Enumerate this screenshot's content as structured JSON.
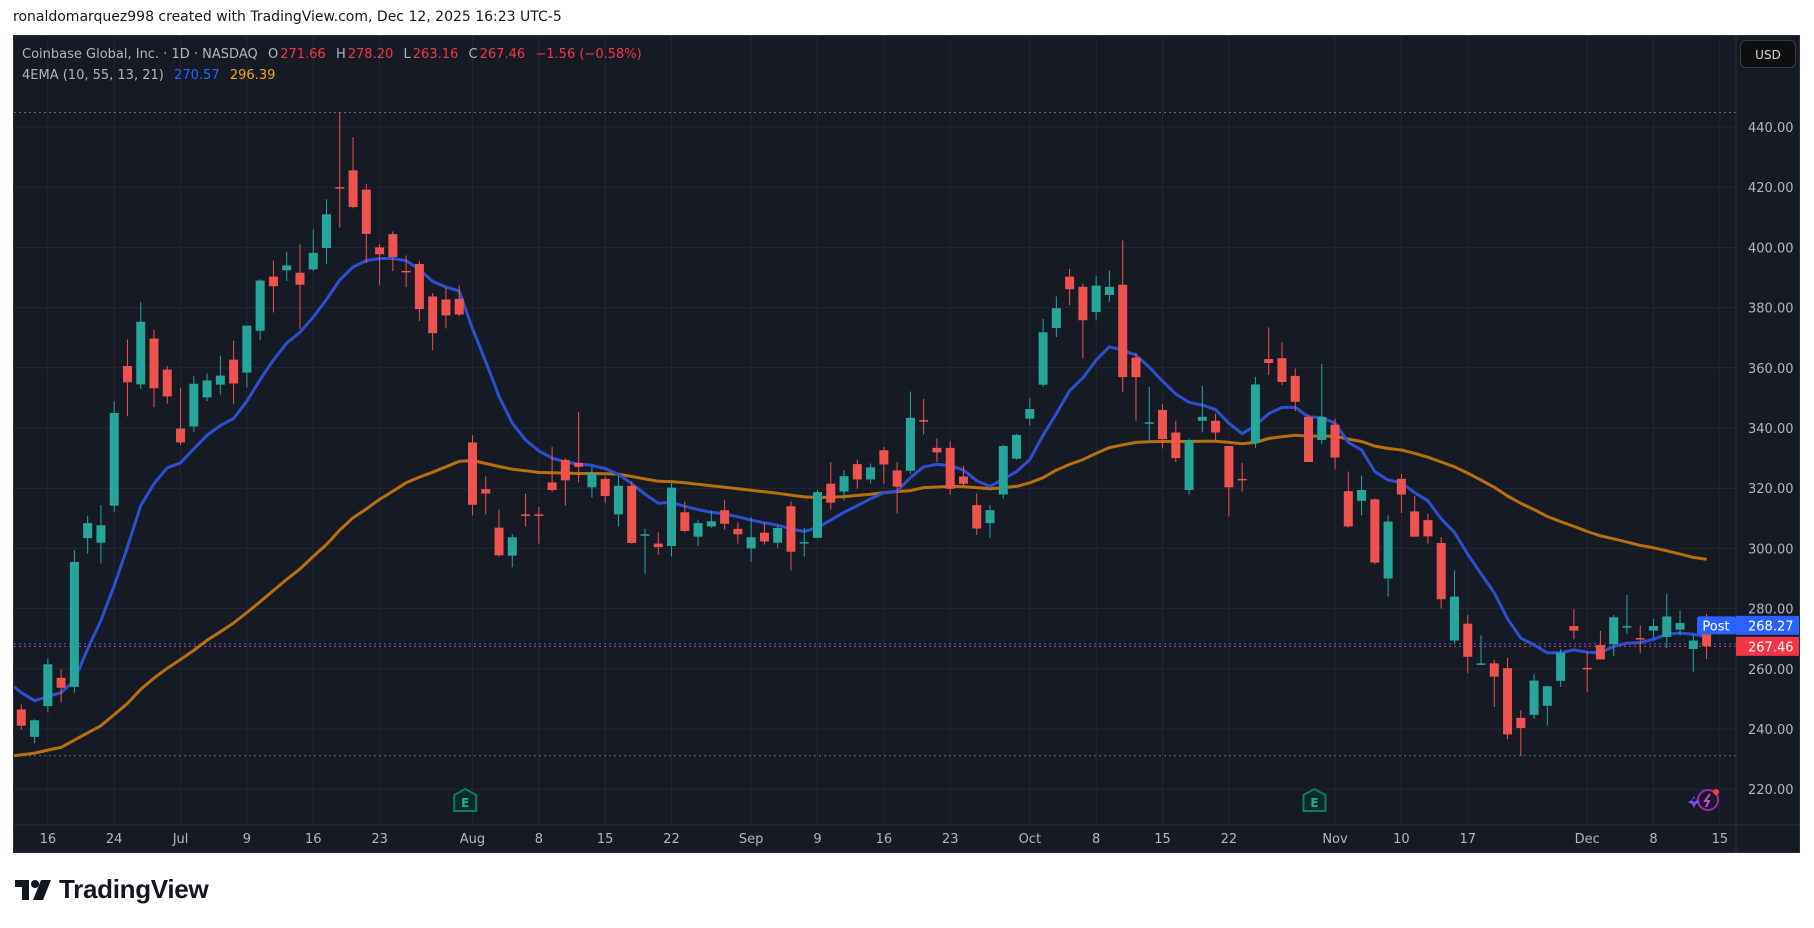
{
  "attribution": "ronaldomarquez998 created with TradingView.com, Dec 12, 2025 16:23 UTC-5",
  "legend": {
    "symbol": "Coinbase Global, Inc. · 1D · NASDAQ",
    "o_label": "O",
    "o": "271.66",
    "h_label": "H",
    "h": "278.20",
    "l_label": "L",
    "l": "263.16",
    "c_label": "C",
    "c": "267.46",
    "change": "−1.56 (−0.58%)",
    "indicator": "4EMA (10, 55, 13, 21)",
    "ema_fast": "270.57",
    "ema_slow": "296.39"
  },
  "currency_button": "USD",
  "price_labels": {
    "post_tag": "Post",
    "post_price": "268.27",
    "last_price": "267.46"
  },
  "brand": "TradingView",
  "colors": {
    "background": "#161a25",
    "grid": "#232733",
    "up": "#26a69a",
    "down": "#ef5350",
    "ema_fast": "#2c4fd0",
    "ema_slow": "#b8700f",
    "post": "#2962ff",
    "last": "#f23645",
    "axis_text": "#b2b5be"
  },
  "chart_data": {
    "type": "candlestick",
    "title": "Coinbase Global, Inc. · 1D · NASDAQ",
    "ylim": [
      210,
      450
    ],
    "y_ticks": [
      "220.00",
      "240.00",
      "260.00",
      "280.00",
      "300.00",
      "320.00",
      "340.00",
      "360.00",
      "380.00",
      "400.00",
      "420.00",
      "440.00"
    ],
    "x_ticks": [
      {
        "label": "16",
        "date": "2025-06-16"
      },
      {
        "label": "24",
        "date": "2025-06-24"
      },
      {
        "label": "Jul",
        "date": "2025-07-01"
      },
      {
        "label": "9",
        "date": "2025-07-09"
      },
      {
        "label": "16",
        "date": "2025-07-16"
      },
      {
        "label": "23",
        "date": "2025-07-23"
      },
      {
        "label": "Aug",
        "date": "2025-08-01"
      },
      {
        "label": "8",
        "date": "2025-08-08"
      },
      {
        "label": "15",
        "date": "2025-08-15"
      },
      {
        "label": "22",
        "date": "2025-08-22"
      },
      {
        "label": "Sep",
        "date": "2025-09-02"
      },
      {
        "label": "9",
        "date": "2025-09-09"
      },
      {
        "label": "16",
        "date": "2025-09-16"
      },
      {
        "label": "23",
        "date": "2025-09-23"
      },
      {
        "label": "Oct",
        "date": "2025-10-01"
      },
      {
        "label": "8",
        "date": "2025-10-08"
      },
      {
        "label": "15",
        "date": "2025-10-15"
      },
      {
        "label": "22",
        "date": "2025-10-22"
      },
      {
        "label": "Nov",
        "date": "2025-11-03"
      },
      {
        "label": "10",
        "date": "2025-11-10"
      },
      {
        "label": "17",
        "date": "2025-11-17"
      },
      {
        "label": "Dec",
        "date": "2025-12-01"
      },
      {
        "label": "8",
        "date": "2025-12-08"
      },
      {
        "label": "15",
        "date": "2025-12-15"
      }
    ],
    "grid": true,
    "earnings_markers": [
      "2025-07-31",
      "2025-10-30"
    ],
    "candles_format": [
      "date",
      "open",
      "high",
      "low",
      "close"
    ],
    "candles": [
      [
        "2025-06-12",
        246.5,
        248.1,
        239.8,
        241.1
      ],
      [
        "2025-06-13",
        237.4,
        243.2,
        235.2,
        242.9
      ],
      [
        "2025-06-16",
        247.6,
        263.4,
        245.6,
        261.5
      ],
      [
        "2025-06-17",
        257,
        259.8,
        248.9,
        253.7
      ],
      [
        "2025-06-18",
        254,
        299.4,
        252.1,
        295.5
      ],
      [
        "2025-06-20",
        303.4,
        310.8,
        298.2,
        308.4
      ],
      [
        "2025-06-23",
        301.9,
        314.4,
        295,
        307.7
      ],
      [
        "2025-06-24",
        314.2,
        348.9,
        312.1,
        345
      ],
      [
        "2025-06-25",
        360.6,
        369.4,
        343.9,
        355.2
      ],
      [
        "2025-06-26",
        354.5,
        381.9,
        353,
        375.3
      ],
      [
        "2025-06-27",
        369.7,
        372.7,
        346.9,
        353.2
      ],
      [
        "2025-06-30",
        359.4,
        360.6,
        348.1,
        350.5
      ],
      [
        "2025-07-01",
        339.8,
        353.4,
        334.4,
        335.2
      ],
      [
        "2025-07-02",
        340.5,
        357.3,
        338.7,
        354.7
      ],
      [
        "2025-07-03",
        350.2,
        358.1,
        348.9,
        355.8
      ],
      [
        "2025-07-07",
        354.4,
        364,
        351.1,
        357.4
      ],
      [
        "2025-07-08",
        362.7,
        369,
        348.1,
        354.8
      ],
      [
        "2025-07-09",
        358.4,
        374,
        353.5,
        374
      ],
      [
        "2025-07-10",
        372.3,
        389.4,
        369.2,
        389
      ],
      [
        "2025-07-11",
        390.3,
        395.6,
        378.4,
        387.1
      ],
      [
        "2025-07-14",
        392.4,
        398.5,
        388.9,
        394
      ],
      [
        "2025-07-15",
        391.6,
        401,
        373,
        387.6
      ],
      [
        "2025-07-16",
        392.7,
        406,
        392.1,
        398.2
      ],
      [
        "2025-07-17",
        399.8,
        416,
        394.5,
        411
      ],
      [
        "2025-07-18",
        420,
        444.8,
        406.6,
        419.7
      ],
      [
        "2025-07-21",
        425.6,
        436.6,
        413,
        413.4
      ],
      [
        "2025-07-22",
        419.2,
        421,
        394.8,
        404.5
      ],
      [
        "2025-07-23",
        400,
        401.1,
        387.4,
        397.7
      ],
      [
        "2025-07-24",
        404.4,
        405.3,
        392.1,
        396.8
      ],
      [
        "2025-07-25",
        392.2,
        397.3,
        386.8,
        391.8
      ],
      [
        "2025-07-28",
        394.5,
        395.5,
        375.5,
        379.5
      ],
      [
        "2025-07-29",
        383.7,
        384.8,
        365.8,
        371.5
      ],
      [
        "2025-07-30",
        382.7,
        386.6,
        373.1,
        377.4
      ],
      [
        "2025-07-31",
        382.9,
        387.3,
        377.1,
        377.7
      ],
      [
        "2025-08-01",
        335.2,
        337.6,
        311,
        314.5
      ],
      [
        "2025-08-04",
        319.7,
        323.9,
        311.3,
        318.2
      ],
      [
        "2025-08-05",
        306.9,
        312.9,
        297.3,
        297.7
      ],
      [
        "2025-08-06",
        297.6,
        304.8,
        293.7,
        303.7
      ],
      [
        "2025-08-07",
        311.3,
        318.2,
        307.3,
        310.9
      ],
      [
        "2025-08-08",
        311.3,
        313.7,
        301.6,
        310.9
      ],
      [
        "2025-08-11",
        321.9,
        333.7,
        318.7,
        319.4
      ],
      [
        "2025-08-12",
        329.4,
        330,
        314.2,
        322.6
      ],
      [
        "2025-08-13",
        328.4,
        345.3,
        321.9,
        327.1
      ],
      [
        "2025-08-14",
        320.3,
        327.1,
        316.9,
        325
      ],
      [
        "2025-08-15",
        323.1,
        323.9,
        315,
        317.4
      ],
      [
        "2025-08-18",
        311.3,
        324.4,
        307.3,
        320.8
      ],
      [
        "2025-08-19",
        320.8,
        322.3,
        301.6,
        301.8
      ],
      [
        "2025-08-20",
        304.5,
        306.5,
        291.6,
        304.7
      ],
      [
        "2025-08-21",
        301.6,
        305.3,
        297.9,
        300.4
      ],
      [
        "2025-08-22",
        300.8,
        322.3,
        297.3,
        320.2
      ],
      [
        "2025-08-25",
        312,
        315.6,
        305.3,
        305.8
      ],
      [
        "2025-08-26",
        303.9,
        309.5,
        300.8,
        308.4
      ],
      [
        "2025-08-27",
        307.3,
        312.6,
        306.9,
        309
      ],
      [
        "2025-08-28",
        312.7,
        316.1,
        306.3,
        308.2
      ],
      [
        "2025-08-29",
        306.5,
        308.6,
        301.6,
        304.7
      ],
      [
        "2025-09-02",
        300,
        310.5,
        295.6,
        303.7
      ],
      [
        "2025-09-03",
        305.2,
        308.4,
        301.3,
        302.3
      ],
      [
        "2025-09-04",
        301.9,
        307.6,
        300.2,
        306.8
      ],
      [
        "2025-09-05",
        314,
        315.6,
        292.7,
        298.9
      ],
      [
        "2025-09-08",
        302,
        306.8,
        297.3,
        302.1
      ],
      [
        "2025-09-09",
        303.5,
        319.4,
        303.5,
        318.7
      ],
      [
        "2025-09-10",
        321.5,
        328.7,
        312.9,
        315.2
      ],
      [
        "2025-09-11",
        318.9,
        326,
        316,
        324
      ],
      [
        "2025-09-12",
        328,
        329.5,
        319.8,
        322.9
      ],
      [
        "2025-09-15",
        322.9,
        328.2,
        321.5,
        326.9
      ],
      [
        "2025-09-16",
        332.6,
        333.7,
        321.5,
        327.9
      ],
      [
        "2025-09-17",
        325.9,
        328.7,
        311.6,
        320.5
      ],
      [
        "2025-09-18",
        325.8,
        352.1,
        324.7,
        343.4
      ],
      [
        "2025-09-19",
        342.6,
        349.7,
        337.9,
        342.4
      ],
      [
        "2025-09-22",
        333.4,
        336.5,
        328.7,
        331.9
      ],
      [
        "2025-09-23",
        333.4,
        335.6,
        317.9,
        319.8
      ],
      [
        "2025-09-24",
        323.9,
        327.4,
        320.6,
        321.5
      ],
      [
        "2025-09-25",
        314.4,
        318.2,
        304.5,
        306.6
      ],
      [
        "2025-09-26",
        308.4,
        314.4,
        303.4,
        312.7
      ],
      [
        "2025-09-29",
        317.9,
        334.4,
        316.6,
        334
      ],
      [
        "2025-09-30",
        329.8,
        338.1,
        329.5,
        337.7
      ],
      [
        "2025-10-01",
        343.1,
        350,
        340.8,
        346.3
      ],
      [
        "2025-10-02",
        354.4,
        376.3,
        353.7,
        371.8
      ],
      [
        "2025-10-03",
        373.2,
        383.7,
        370.2,
        379.8
      ],
      [
        "2025-10-06",
        390.3,
        392.9,
        380.8,
        386.1
      ],
      [
        "2025-10-07",
        386.9,
        387.9,
        363.2,
        375.8
      ],
      [
        "2025-10-08",
        378.5,
        390.6,
        375.8,
        387.3
      ],
      [
        "2025-10-09",
        384.2,
        392.3,
        381.9,
        386.9
      ],
      [
        "2025-10-10",
        387.6,
        402.3,
        351.9,
        356.9
      ],
      [
        "2025-10-13",
        363.4,
        365,
        342.4,
        356.9
      ],
      [
        "2025-10-14",
        341.5,
        353.7,
        335,
        341.9
      ],
      [
        "2025-10-15",
        346,
        347.9,
        333.2,
        336.3
      ],
      [
        "2025-10-16",
        338.5,
        342.4,
        328.7,
        330
      ],
      [
        "2025-10-17",
        319.4,
        336.5,
        317.9,
        336
      ],
      [
        "2025-10-20",
        342.4,
        354,
        338.5,
        343.7
      ],
      [
        "2025-10-21",
        342.4,
        344.8,
        335.6,
        338.5
      ],
      [
        "2025-10-22",
        334,
        334,
        310.6,
        320.3
      ],
      [
        "2025-10-23",
        323.1,
        328.4,
        318.9,
        322.9
      ],
      [
        "2025-10-24",
        335,
        357,
        333.4,
        354.5
      ],
      [
        "2025-10-27",
        362.9,
        373.4,
        357.6,
        361.6
      ],
      [
        "2025-10-28",
        363.2,
        368.4,
        354.2,
        355.3
      ],
      [
        "2025-10-29",
        357.3,
        359.8,
        345.6,
        348.7
      ],
      [
        "2025-10-30",
        343.7,
        344.4,
        328.7,
        328.7
      ],
      [
        "2025-10-31",
        336,
        361.3,
        334.7,
        343.7
      ],
      [
        "2025-11-03",
        341.1,
        343.1,
        326.3,
        330.2
      ],
      [
        "2025-11-04",
        319,
        325.5,
        306.9,
        307.3
      ],
      [
        "2025-11-05",
        315.8,
        324.2,
        311,
        319.4
      ],
      [
        "2025-11-06",
        316.3,
        316.6,
        294.8,
        295.3
      ],
      [
        "2025-11-07",
        290,
        311,
        284,
        308.9
      ],
      [
        "2025-11-10",
        323.1,
        324.7,
        311.8,
        317.9
      ],
      [
        "2025-11-11",
        312.3,
        317.4,
        303.9,
        303.9
      ],
      [
        "2025-11-12",
        309.4,
        311.5,
        301.6,
        304
      ],
      [
        "2025-11-13",
        301.8,
        303.7,
        280,
        283.1
      ],
      [
        "2025-11-14",
        269.4,
        292.7,
        268.5,
        284
      ],
      [
        "2025-11-17",
        275,
        277.9,
        258.5,
        264
      ],
      [
        "2025-11-18",
        261.6,
        271.1,
        261.3,
        261.8
      ],
      [
        "2025-11-19",
        261.8,
        262.9,
        247.3,
        257.4
      ],
      [
        "2025-11-20",
        260.2,
        263.7,
        236.6,
        238.2
      ],
      [
        "2025-11-21",
        243.7,
        246.3,
        231.1,
        240.3
      ],
      [
        "2025-11-24",
        244.7,
        258.2,
        243.4,
        256.1
      ],
      [
        "2025-11-25",
        247.7,
        254.5,
        241.1,
        254.2
      ],
      [
        "2025-11-26",
        256,
        266.6,
        254,
        265.3
      ],
      [
        "2025-11-28",
        274.2,
        279.8,
        269.8,
        272.7
      ],
      [
        "2025-12-01",
        260.3,
        265.8,
        252.4,
        259.8
      ],
      [
        "2025-12-02",
        267.9,
        272.6,
        263.1,
        263.1
      ],
      [
        "2025-12-03",
        268.2,
        277.9,
        264.2,
        277.1
      ],
      [
        "2025-12-04",
        274,
        284.5,
        271.5,
        274.2
      ],
      [
        "2025-12-05",
        270.2,
        274.4,
        265.3,
        269.8
      ],
      [
        "2025-12-08",
        272.7,
        276.6,
        270.2,
        274.2
      ],
      [
        "2025-12-09",
        270.6,
        284.8,
        266.9,
        277.4
      ],
      [
        "2025-12-10",
        273,
        279.4,
        271,
        275.2
      ],
      [
        "2025-12-11",
        266.6,
        271.1,
        259,
        269.4
      ],
      [
        "2025-12-12",
        271.66,
        278.2,
        263.16,
        267.46
      ]
    ],
    "series": [
      {
        "values": [
          252.1,
          249.4,
          250.8,
          252.1,
          256.1,
          266.6,
          276,
          287.6,
          300.5,
          314.2,
          321.5,
          326.8,
          328.4,
          333.1,
          337.6,
          340.8,
          343.2,
          348.9,
          356.1,
          362.6,
          368.2,
          371.8,
          376.8,
          382.7,
          389.2,
          393.5,
          395.6,
          396.3,
          396.3,
          395.6,
          392.7,
          388.7,
          386.8,
          385.5,
          373,
          362,
          350.5,
          341.6,
          336,
          332.4,
          330,
          328.7,
          328,
          327.6,
          326.5,
          324.7,
          321.5,
          318,
          315,
          315.3,
          314,
          312.9,
          312,
          311.5,
          310.5,
          309.4,
          308.5,
          307.7,
          306.5,
          305.6,
          306.9,
          309.4,
          312,
          314.2,
          316.5,
          318.5,
          319,
          323.5,
          327.1,
          327.9,
          327.5,
          326,
          322.5,
          320.6,
          323,
          325.5,
          329.5,
          337.6,
          344.8,
          352.4,
          356.6,
          362.6,
          367,
          365.8,
          364.2,
          360.2,
          355.6,
          351.3,
          348.5,
          347.6,
          346.1,
          341.6,
          338.1,
          340.8,
          344.8,
          346.8,
          346.9,
          343.7,
          343.5,
          341.6,
          335.2,
          332.7,
          325.5,
          322.7,
          321.9,
          318.5,
          315.8,
          309.8,
          305.3,
          298.1,
          291.6,
          285.2,
          276.6,
          270.2,
          267.9,
          265.3,
          265.3,
          266.3,
          265.5,
          265.3,
          267.4,
          268.5,
          268.7,
          269.8,
          271.5,
          271.9,
          271.5,
          270.57
        ]
      },
      {
        "values": [
          231.4,
          232,
          233,
          233.9,
          236.3,
          238.7,
          241.1,
          244.8,
          248.5,
          253.2,
          256.9,
          260.2,
          263.1,
          266.1,
          269.5,
          272.3,
          275.2,
          278.7,
          282.3,
          286,
          289.7,
          293.2,
          297.3,
          301.3,
          306.1,
          310.2,
          313.1,
          316.3,
          319,
          321.8,
          323.7,
          325.3,
          327.1,
          328.9,
          329.2,
          328.2,
          327.2,
          326.3,
          325.8,
          325.2,
          325.1,
          325,
          324.9,
          324.9,
          324.8,
          324.7,
          323.9,
          323.1,
          322.3,
          322.2,
          321.8,
          321.3,
          320.8,
          320.3,
          319.8,
          319.3,
          318.8,
          318.3,
          317.7,
          317.1,
          316.9,
          317,
          317.2,
          317.6,
          318,
          318.5,
          318.9,
          319.2,
          320.2,
          320.4,
          320.6,
          320.5,
          320.2,
          319.8,
          320.2,
          320.6,
          321.8,
          323.5,
          326,
          327.9,
          329.5,
          331.6,
          333.5,
          334.4,
          335.2,
          335.4,
          335.5,
          335.5,
          335.5,
          335.6,
          335.6,
          335.2,
          334.8,
          335.2,
          336.5,
          337.1,
          337.6,
          337.3,
          337.3,
          337.3,
          336.3,
          335.5,
          334,
          333.2,
          332.7,
          331.6,
          330.3,
          328.7,
          327.1,
          325,
          322.7,
          320.3,
          317.4,
          315,
          312.9,
          310.6,
          308.9,
          307.3,
          305.6,
          304.2,
          303.2,
          302.1,
          301,
          300.2,
          299.2,
          298.1,
          297,
          296.39
        ]
      }
    ],
    "post_market_price": 268.27,
    "last_price": 267.46
  }
}
